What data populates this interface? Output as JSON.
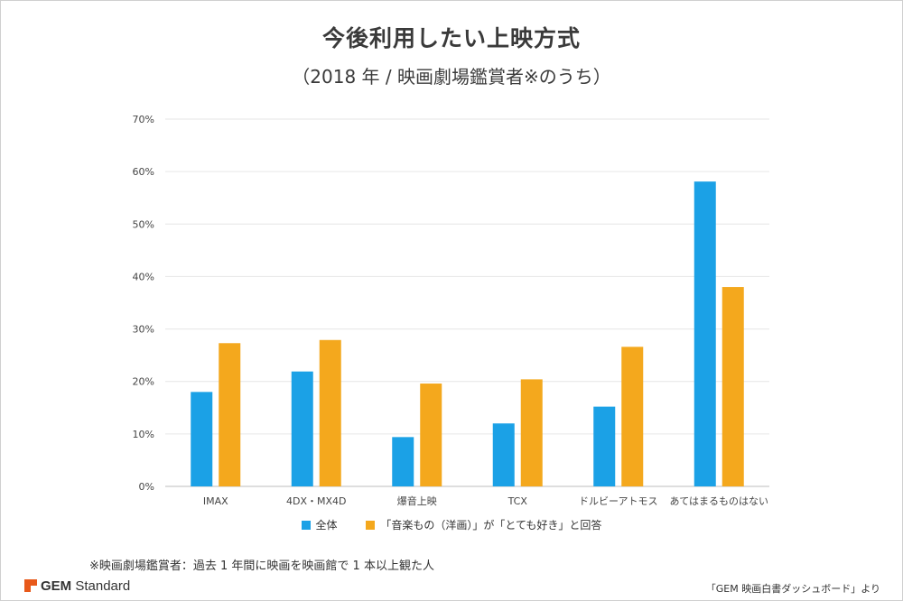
{
  "title": "今後利用したい上映方式",
  "subtitle": "（2018 年 / 映画劇場鑑賞者※のうち）",
  "chart_data": {
    "type": "bar",
    "categories": [
      "IMAX",
      "4DX・MX4D",
      "爆音上映",
      "TCX",
      "ドルビーアトモス",
      "あてはまるものはない"
    ],
    "series": [
      {
        "name": "全体",
        "color": "#1ba1e6",
        "values": [
          18.0,
          21.9,
          9.4,
          12.0,
          15.2,
          58.1
        ]
      },
      {
        "name": "「音楽もの（洋画）」が「とても好き」と回答",
        "color": "#f4a81d",
        "values": [
          27.3,
          27.9,
          19.6,
          20.4,
          26.6,
          38.0
        ]
      }
    ],
    "ylim": [
      0,
      70
    ],
    "yticks": [
      0,
      10,
      20,
      30,
      40,
      50,
      60,
      70
    ],
    "ytick_labels": [
      "0%",
      "10%",
      "20%",
      "30%",
      "40%",
      "50%",
      "60%",
      "70%"
    ],
    "grid": true,
    "legend_position": "bottom"
  },
  "footnote": "※映画劇場鑑賞者：過去 1 年間に映画を映画館で 1 本以上観た人",
  "logo": {
    "mark": "GEM",
    "rest": " Standard",
    "brand_color": "#e8591a"
  },
  "source": "「GEM 映画白書ダッシュボード」より"
}
